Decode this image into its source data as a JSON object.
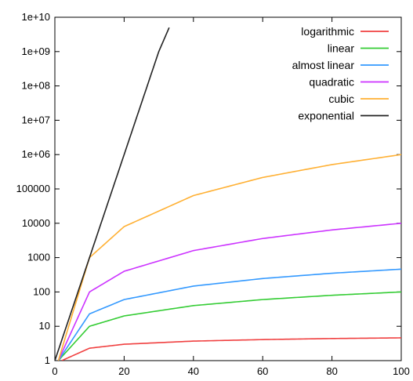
{
  "chart_data": {
    "type": "line",
    "title": "",
    "xlabel": "",
    "ylabel": "",
    "xlim": [
      0,
      100
    ],
    "ylim": [
      1,
      10000000000
    ],
    "y_scale": "log",
    "grid": false,
    "legend_position": "top-right",
    "x_ticks": [
      "0",
      "20",
      "40",
      "60",
      "80",
      "100"
    ],
    "y_ticks": [
      "1",
      "10",
      "100",
      "1000",
      "10000",
      "100000",
      "1e+06",
      "1e+07",
      "1e+08",
      "1e+09",
      "1e+10"
    ],
    "series": [
      {
        "name": "logarithmic",
        "color": "#f04040",
        "x": [
          2,
          10,
          20,
          40,
          60,
          80,
          100
        ],
        "y": [
          1,
          2.3,
          3.0,
          3.7,
          4.1,
          4.4,
          4.6
        ]
      },
      {
        "name": "linear",
        "color": "#33cc33",
        "x": [
          1,
          10,
          20,
          40,
          60,
          80,
          100
        ],
        "y": [
          1,
          10,
          20,
          40,
          60,
          80,
          100
        ]
      },
      {
        "name": "almost linear",
        "color": "#3399ff",
        "x": [
          1,
          10,
          20,
          40,
          60,
          80,
          100
        ],
        "y": [
          1,
          23,
          60,
          148,
          246,
          351,
          461
        ]
      },
      {
        "name": "quadratic",
        "color": "#cc33ff",
        "x": [
          1,
          10,
          20,
          40,
          60,
          80,
          100
        ],
        "y": [
          1,
          100,
          400,
          1600,
          3600,
          6400,
          10000
        ]
      },
      {
        "name": "cubic",
        "color": "#ffb033",
        "x": [
          1,
          10,
          20,
          40,
          60,
          80,
          100
        ],
        "y": [
          1,
          1000,
          8000,
          64000,
          216000,
          512000,
          1000000
        ]
      },
      {
        "name": "exponential",
        "color": "#222222",
        "x": [
          0,
          10,
          20,
          30,
          33
        ],
        "y": [
          1,
          1000,
          1000000,
          1000000000,
          5000000000
        ]
      }
    ]
  }
}
